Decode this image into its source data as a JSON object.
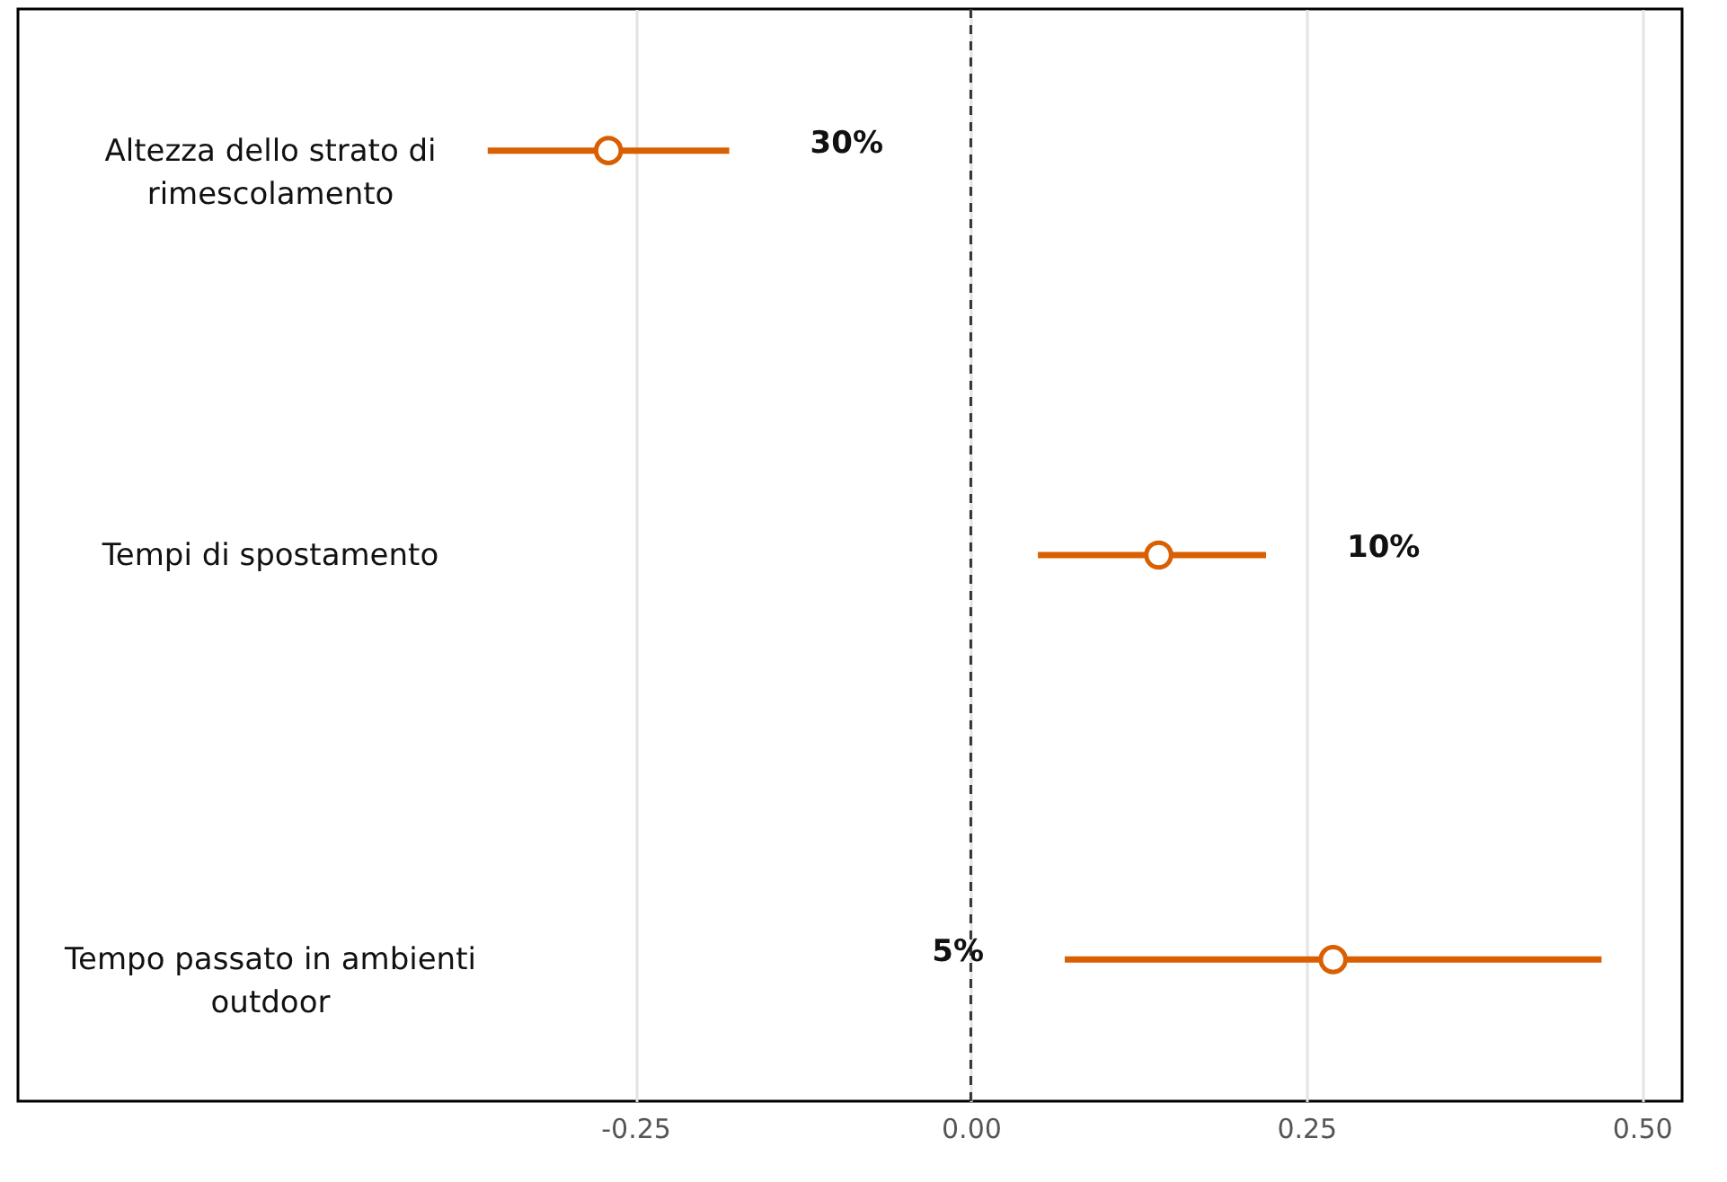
{
  "chart_data": {
    "type": "scatter",
    "orientation": "horizontal",
    "categories": [
      "Altezza dello strato di rimescolamento",
      "Tempi di spostamento",
      "Tempo passato in ambienti outdoor"
    ],
    "series": [
      {
        "color": "#d95f02",
        "values": [
          -0.27,
          0.14,
          0.27
        ],
        "errors": [
          [
            -0.36,
            -0.18
          ],
          [
            0.05,
            0.22
          ],
          [
            0.07,
            0.47
          ]
        ]
      }
    ],
    "marker": "circle",
    "xlim": [
      -0.71,
      0.53
    ],
    "xticks": [
      {
        "value": -0.25,
        "label": "-0.25"
      },
      {
        "value": 0,
        "label": "0.00"
      },
      {
        "value": 0.25,
        "label": "0.25"
      },
      {
        "value": 0.5,
        "label": "0.50"
      }
    ],
    "grid": "x",
    "ref_lines": [
      {
        "axis": "x",
        "value": 0,
        "color": "#333333",
        "line_style": "dashed"
      }
    ],
    "annotations": [
      "30%",
      "10%",
      "5%"
    ]
  }
}
